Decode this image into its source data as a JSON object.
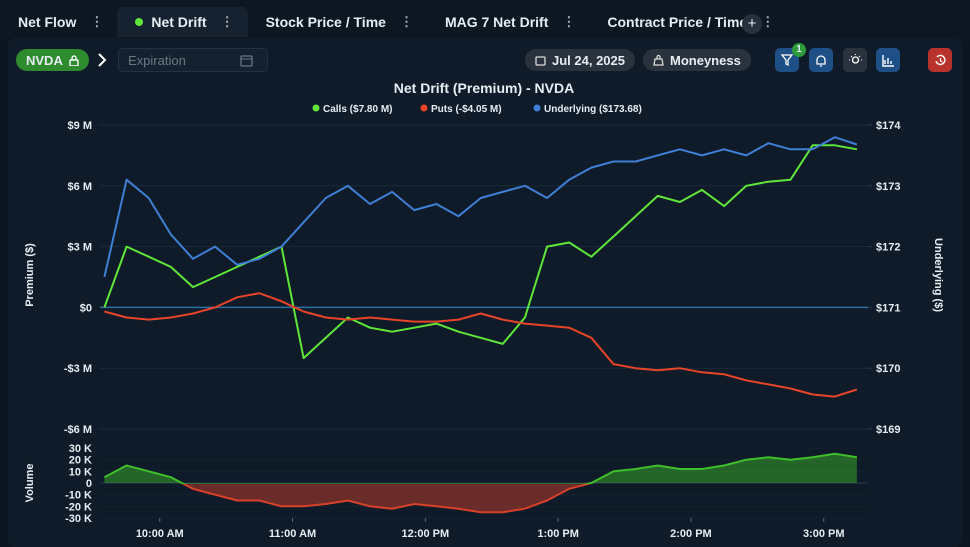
{
  "tabs": [
    {
      "label": "Net Flow"
    },
    {
      "label": "Net Drift",
      "active": true
    },
    {
      "label": "Stock Price / Time"
    },
    {
      "label": "MAG 7 Net Drift"
    },
    {
      "label": "Contract Price / Time"
    }
  ],
  "toolbar": {
    "ticker": "NVDA",
    "expiration_placeholder": "Expiration",
    "date": "Jul 24, 2025",
    "moneyness": "Moneyness",
    "filter_count": 1
  },
  "chart_data": {
    "type": "line",
    "title": "Net Drift (Premium) - NVDA",
    "ylabel": "Premium ($)",
    "y2label": "Underlying ($)",
    "x": [
      "9:35 AM",
      "9:45 AM",
      "9:55 AM",
      "10:05 AM",
      "10:15 AM",
      "10:25 AM",
      "10:35 AM",
      "10:45 AM",
      "10:55 AM",
      "11:05 AM",
      "11:15 AM",
      "11:25 AM",
      "11:35 AM",
      "11:45 AM",
      "11:55 AM",
      "12:05 PM",
      "12:15 PM",
      "12:25 PM",
      "12:35 PM",
      "12:45 PM",
      "12:55 PM",
      "1:05 PM",
      "1:15 PM",
      "1:25 PM",
      "1:35 PM",
      "1:45 PM",
      "1:55 PM",
      "2:05 PM",
      "2:15 PM",
      "2:25 PM",
      "2:35 PM",
      "2:45 PM",
      "2:55 PM",
      "3:05 PM",
      "3:15 PM"
    ],
    "xlim": [
      "9:33 AM",
      "3:20 PM"
    ],
    "xticks": [
      "10:00 AM",
      "11:00 AM",
      "12:00 PM",
      "1:00 PM",
      "2:00 PM",
      "3:00 PM"
    ],
    "ylim": [
      -6,
      9
    ],
    "yticks": [
      {
        "value": -6,
        "label": "-$6 M"
      },
      {
        "value": -3,
        "label": "-$3 M"
      },
      {
        "value": 0,
        "label": "$0"
      },
      {
        "value": 3,
        "label": "$3 M"
      },
      {
        "value": 6,
        "label": "$6 M"
      },
      {
        "value": 9,
        "label": "$9 M"
      }
    ],
    "y2lim": [
      169,
      174
    ],
    "y2ticks": [
      {
        "value": 169,
        "label": "$169"
      },
      {
        "value": 170,
        "label": "$170"
      },
      {
        "value": 171,
        "label": "$171"
      },
      {
        "value": 172,
        "label": "$172"
      },
      {
        "value": 173,
        "label": "$173"
      },
      {
        "value": 174,
        "label": "$174"
      }
    ],
    "grid": true,
    "series": [
      {
        "name": "Calls ($7.80 M)",
        "color": "#5fe63a",
        "values": [
          0,
          3.0,
          2.5,
          2.0,
          1.0,
          1.5,
          2.0,
          2.5,
          3.0,
          -2.5,
          -1.5,
          -0.5,
          -1.0,
          -1.2,
          -1.0,
          -0.8,
          -1.2,
          -1.5,
          -1.8,
          -0.5,
          3.0,
          3.2,
          2.5,
          3.5,
          4.5,
          5.5,
          5.2,
          5.8,
          5.0,
          6.0,
          6.2,
          6.3,
          8.0,
          8.0,
          7.8
        ]
      },
      {
        "name": "Puts (-$4.05 M)",
        "color": "#e8442a",
        "values": [
          -0.2,
          -0.5,
          -0.6,
          -0.5,
          -0.3,
          0.0,
          0.5,
          0.7,
          0.3,
          -0.2,
          -0.5,
          -0.6,
          -0.5,
          -0.6,
          -0.7,
          -0.7,
          -0.6,
          -0.3,
          -0.6,
          -0.8,
          -0.9,
          -1.0,
          -1.5,
          -2.8,
          -3.0,
          -3.1,
          -3.0,
          -3.2,
          -3.3,
          -3.6,
          -3.8,
          -4.0,
          -4.3,
          -4.4,
          -4.05
        ]
      },
      {
        "name": "Underlying ($173.68)",
        "color": "#3f7fd6",
        "axis": "y2",
        "values": [
          171.5,
          173.1,
          172.8,
          172.2,
          171.8,
          172.0,
          171.7,
          171.8,
          172.0,
          172.4,
          172.8,
          173.0,
          172.7,
          172.9,
          172.6,
          172.7,
          172.5,
          172.8,
          172.9,
          173.0,
          172.8,
          173.1,
          173.3,
          173.4,
          173.4,
          173.5,
          173.6,
          173.5,
          173.6,
          173.5,
          173.7,
          173.6,
          173.6,
          173.8,
          173.68
        ]
      }
    ],
    "volume": {
      "ylabel": "Volume",
      "ylim": [
        -30,
        30
      ],
      "yticks": [
        {
          "value": -30,
          "label": "-30 K"
        },
        {
          "value": -20,
          "label": "-20 K"
        },
        {
          "value": -10,
          "label": "-10 K"
        },
        {
          "value": 0,
          "label": "0"
        },
        {
          "value": 10,
          "label": "10 K"
        },
        {
          "value": 20,
          "label": "20 K"
        },
        {
          "value": 30,
          "label": "30 K"
        }
      ],
      "positive_color": "#3fbf2a",
      "negative_color": "#d9412a",
      "values": [
        5,
        15,
        10,
        5,
        -5,
        -10,
        -15,
        -15,
        -20,
        -20,
        -18,
        -15,
        -20,
        -22,
        -18,
        -20,
        -22,
        -25,
        -25,
        -22,
        -15,
        -5,
        0,
        10,
        12,
        15,
        12,
        12,
        15,
        20,
        22,
        20,
        22,
        25,
        22
      ]
    }
  }
}
